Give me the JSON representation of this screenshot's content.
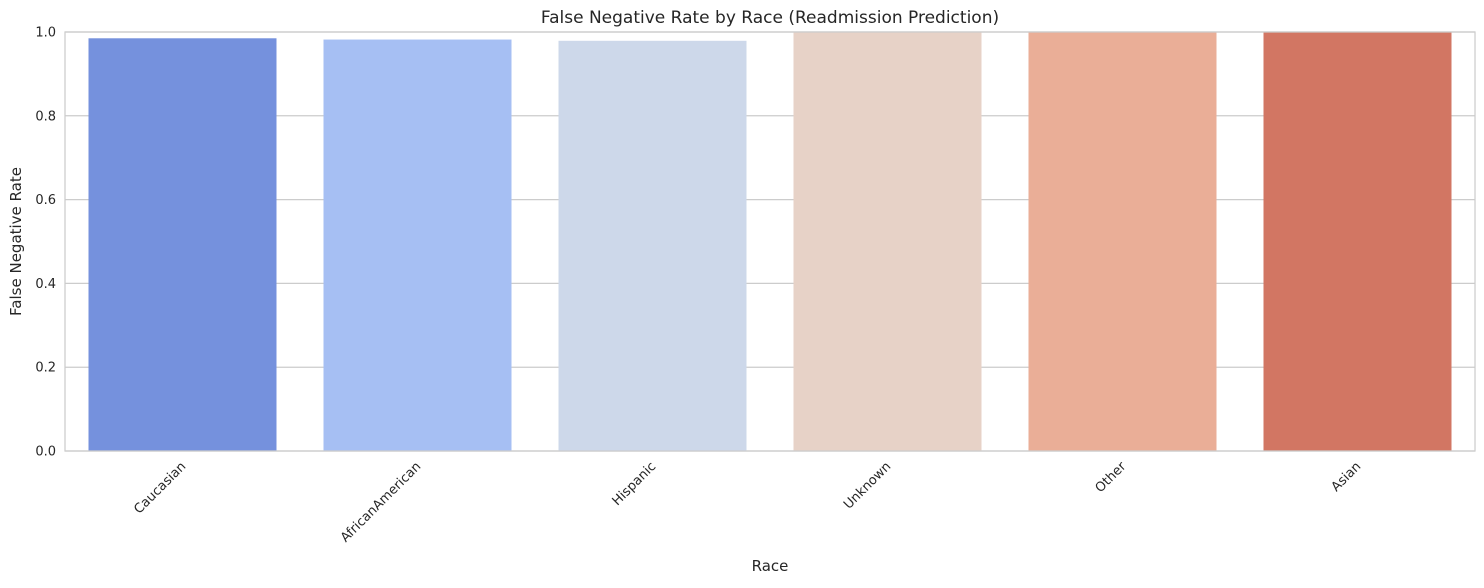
{
  "chart_data": {
    "type": "bar",
    "title": "False Negative Rate by Race (Readmission Prediction)",
    "xlabel": "Race",
    "ylabel": "False Negative Rate",
    "categories": [
      "Caucasian",
      "AfricanAmerican",
      "Hispanic",
      "Unknown",
      "Other",
      "Asian"
    ],
    "values": [
      0.985,
      0.982,
      0.979,
      1.0,
      1.0,
      1.0
    ],
    "colors": [
      "#7591DD",
      "#A6BFF3",
      "#CDD8EA",
      "#E7D2C7",
      "#EAAE97",
      "#D27663"
    ],
    "ylim": [
      0,
      1.0
    ],
    "yticks": [
      0.0,
      0.2,
      0.4,
      0.6,
      0.8,
      1.0
    ],
    "ytick_labels": [
      "0.0",
      "0.2",
      "0.4",
      "0.6",
      "0.8",
      "1.0"
    ],
    "grid": true,
    "legend": "none"
  }
}
